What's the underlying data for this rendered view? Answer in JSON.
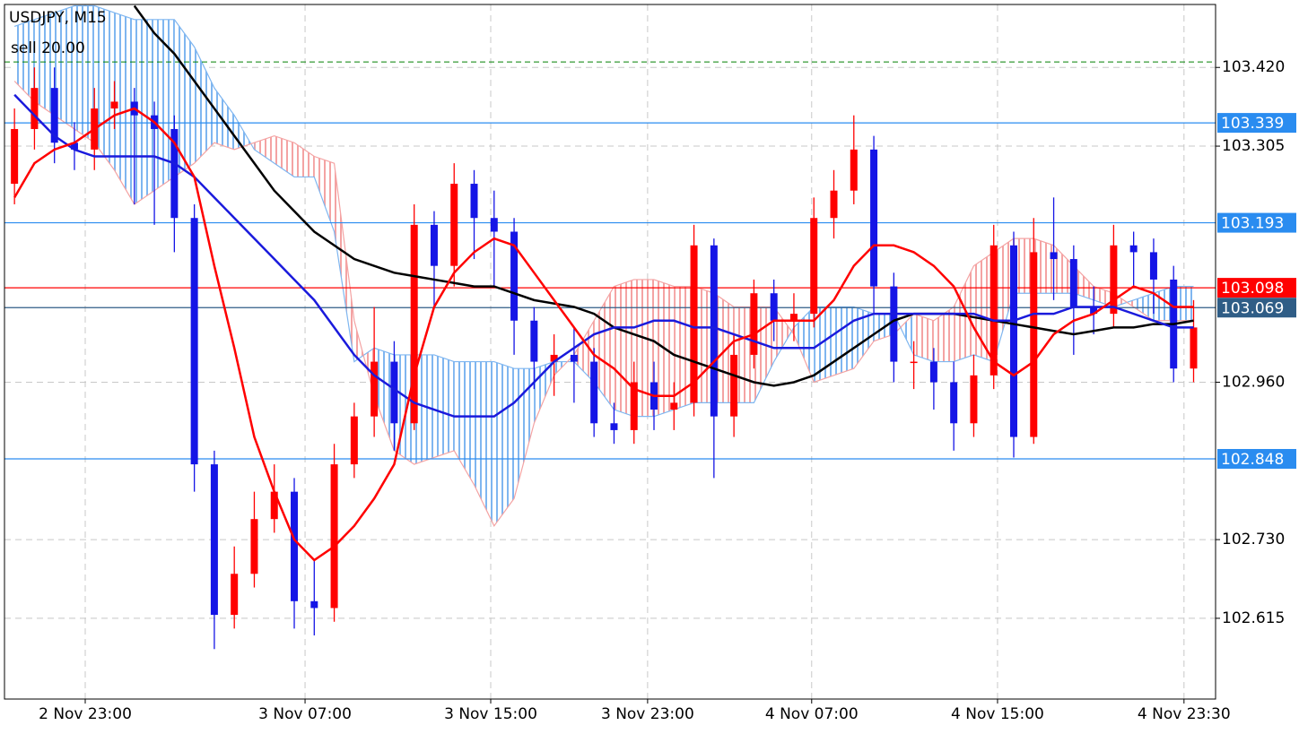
{
  "chart_data": {
    "type": "candlestick",
    "title": "USDJPY, M15",
    "order": {
      "label": "sell 20.00",
      "price": 103.428,
      "color": "#008000"
    },
    "xlim": [
      -0.5,
      60.1
    ],
    "xticks": [
      {
        "value": 3.54,
        "label": "2 Nov 23:00"
      },
      {
        "value": 14.54,
        "label": "3 Nov 07:00"
      },
      {
        "value": 23.83,
        "label": "3 Nov 15:00"
      },
      {
        "value": 31.68,
        "label": "3 Nov 23:00"
      },
      {
        "value": 39.89,
        "label": "4 Nov 07:00"
      },
      {
        "value": 49.19,
        "label": "4 Nov 15:00"
      },
      {
        "value": 58.52,
        "label": "4 Nov 23:30"
      }
    ],
    "ylim": [
      102.497,
      103.512
    ],
    "yticks": [
      {
        "value": 103.42,
        "label": "103.420"
      },
      {
        "value": 103.305,
        "label": "103.305"
      },
      {
        "value": 102.96,
        "label": "102.960"
      },
      {
        "value": 102.73,
        "label": "102.730"
      },
      {
        "value": 102.615,
        "label": "102.615"
      }
    ],
    "grid": true,
    "up_color": "#ff0000",
    "down_color": "#1515e6",
    "open": [
      103.25,
      103.33,
      103.39,
      103.31,
      103.3,
      103.36,
      103.37,
      103.35,
      103.33,
      103.2,
      102.84,
      102.62,
      102.68,
      102.76,
      102.8,
      102.64,
      102.63,
      102.84,
      102.91,
      102.99,
      102.9,
      103.19,
      103.13,
      103.25,
      103.2,
      103.18,
      103.05,
      102.99,
      103.0,
      102.99,
      102.9,
      102.89,
      102.96,
      102.92,
      102.93,
      103.16,
      102.91,
      103.0,
      103.09,
      103.05,
      103.06,
      103.2,
      103.24,
      103.3,
      103.1,
      102.99,
      102.99,
      102.96,
      102.9,
      102.97,
      103.16,
      102.88,
      103.15,
      103.14,
      103.07,
      103.06,
      103.16,
      103.15,
      103.11,
      102.98
    ],
    "high": [
      103.36,
      103.42,
      103.42,
      103.34,
      103.39,
      103.4,
      103.39,
      103.37,
      103.35,
      103.22,
      102.86,
      102.72,
      102.8,
      102.84,
      102.82,
      102.7,
      102.87,
      102.93,
      103.07,
      103.02,
      103.22,
      103.21,
      103.28,
      103.27,
      103.24,
      103.2,
      103.07,
      103.03,
      103.04,
      103.01,
      102.93,
      102.99,
      102.99,
      102.96,
      103.19,
      103.17,
      103.03,
      103.11,
      103.11,
      103.09,
      103.23,
      103.27,
      103.35,
      103.32,
      103.12,
      103.02,
      103.01,
      102.99,
      103.0,
      103.19,
      103.18,
      103.2,
      103.23,
      103.16,
      103.1,
      103.19,
      103.18,
      103.17,
      103.13,
      103.08
    ],
    "low": [
      103.22,
      103.3,
      103.28,
      103.27,
      103.27,
      103.33,
      103.22,
      103.19,
      103.15,
      102.8,
      102.57,
      102.6,
      102.66,
      102.74,
      102.6,
      102.59,
      102.61,
      102.82,
      102.88,
      102.86,
      102.89,
      103.07,
      103.1,
      103.14,
      103.1,
      103.0,
      102.95,
      102.94,
      102.93,
      102.88,
      102.87,
      102.87,
      102.89,
      102.89,
      102.91,
      102.82,
      102.88,
      102.98,
      103.02,
      103.02,
      103.04,
      103.17,
      103.22,
      103.06,
      102.96,
      102.95,
      102.92,
      102.86,
      102.88,
      102.95,
      102.85,
      102.87,
      103.08,
      103.0,
      103.03,
      103.04,
      103.1,
      103.06,
      102.96,
      102.96
    ],
    "close": [
      103.33,
      103.39,
      103.31,
      103.3,
      103.36,
      103.37,
      103.35,
      103.33,
      103.2,
      102.84,
      102.62,
      102.68,
      102.76,
      102.8,
      102.64,
      102.63,
      102.84,
      102.91,
      102.99,
      102.9,
      103.19,
      103.13,
      103.25,
      103.2,
      103.18,
      103.05,
      102.99,
      103.0,
      102.99,
      102.9,
      102.89,
      102.96,
      102.92,
      102.93,
      103.16,
      102.91,
      103.0,
      103.09,
      103.05,
      103.06,
      103.2,
      103.24,
      103.3,
      103.1,
      102.99,
      102.99,
      102.96,
      102.9,
      102.97,
      103.16,
      102.88,
      103.15,
      103.14,
      103.07,
      103.06,
      103.16,
      103.15,
      103.11,
      102.98,
      103.04
    ],
    "cloud": {
      "up_color": "#7fb6f0",
      "down_color": "#f4a3a3",
      "span_a": [
        103.48,
        103.49,
        103.5,
        103.51,
        103.51,
        103.5,
        103.49,
        103.49,
        103.49,
        103.45,
        103.39,
        103.35,
        103.3,
        103.28,
        103.26,
        103.26,
        103.18,
        102.99,
        103.01,
        103.0,
        103.0,
        103.0,
        102.99,
        102.99,
        102.99,
        102.98,
        102.98,
        102.99,
        102.99,
        102.96,
        102.92,
        102.91,
        102.91,
        102.92,
        102.93,
        102.93,
        102.93,
        102.93,
        102.99,
        103.04,
        103.07,
        103.07,
        103.07,
        103.06,
        103.06,
        103.0,
        102.99,
        102.99,
        103.0,
        102.99,
        103.09,
        103.09,
        103.09,
        103.09,
        103.08,
        103.07,
        103.08,
        103.09,
        103.1,
        103.1
      ],
      "span_b": [
        103.4,
        103.37,
        103.35,
        103.33,
        103.31,
        103.27,
        103.22,
        103.24,
        103.26,
        103.28,
        103.31,
        103.3,
        103.31,
        103.32,
        103.31,
        103.29,
        103.28,
        103.05,
        102.94,
        102.86,
        102.84,
        102.85,
        102.86,
        102.81,
        102.75,
        102.79,
        102.9,
        102.97,
        103.0,
        103.05,
        103.1,
        103.11,
        103.11,
        103.1,
        103.1,
        103.09,
        103.07,
        103.07,
        103.07,
        103.03,
        102.96,
        102.97,
        102.98,
        103.02,
        103.03,
        103.06,
        103.05,
        103.07,
        103.13,
        103.15,
        103.17,
        103.17,
        103.16,
        103.13,
        103.1,
        103.09,
        103.07,
        103.05,
        103.05,
        103.05
      ]
    },
    "series": [
      {
        "color": "#000000",
        "values": [
          null,
          null,
          null,
          null,
          null,
          null,
          103.51,
          103.47,
          103.44,
          103.4,
          103.36,
          103.32,
          103.28,
          103.24,
          103.21,
          103.18,
          103.16,
          103.14,
          103.13,
          103.12,
          103.115,
          103.11,
          103.105,
          103.1,
          103.1,
          103.09,
          103.08,
          103.075,
          103.07,
          103.06,
          103.04,
          103.03,
          103.02,
          103.0,
          102.99,
          102.98,
          102.97,
          102.96,
          102.955,
          102.96,
          102.97,
          102.99,
          103.01,
          103.03,
          103.05,
          103.06,
          103.06,
          103.06,
          103.055,
          103.05,
          103.045,
          103.04,
          103.035,
          103.03,
          103.035,
          103.04,
          103.04,
          103.045,
          103.045,
          103.05
        ]
      },
      {
        "color": "#1a1adc",
        "values": [
          103.38,
          103.35,
          103.32,
          103.3,
          103.29,
          103.29,
          103.29,
          103.29,
          103.28,
          103.26,
          103.23,
          103.2,
          103.17,
          103.14,
          103.11,
          103.08,
          103.04,
          103.0,
          102.97,
          102.95,
          102.93,
          102.92,
          102.91,
          102.91,
          102.91,
          102.93,
          102.96,
          102.99,
          103.01,
          103.03,
          103.04,
          103.04,
          103.05,
          103.05,
          103.04,
          103.04,
          103.03,
          103.02,
          103.01,
          103.01,
          103.01,
          103.03,
          103.05,
          103.06,
          103.06,
          103.06,
          103.06,
          103.06,
          103.06,
          103.05,
          103.05,
          103.06,
          103.06,
          103.07,
          103.07,
          103.07,
          103.06,
          103.05,
          103.04,
          103.04
        ]
      },
      {
        "color": "#ff0000",
        "values": [
          103.23,
          103.28,
          103.3,
          103.31,
          103.33,
          103.35,
          103.36,
          103.34,
          103.31,
          103.26,
          103.13,
          103.01,
          102.88,
          102.8,
          102.73,
          102.7,
          102.72,
          102.75,
          102.79,
          102.84,
          102.97,
          103.07,
          103.12,
          103.15,
          103.17,
          103.16,
          103.12,
          103.08,
          103.04,
          103.0,
          102.98,
          102.95,
          102.94,
          102.94,
          102.96,
          102.99,
          103.02,
          103.03,
          103.05,
          103.05,
          103.05,
          103.08,
          103.13,
          103.16,
          103.16,
          103.15,
          103.13,
          103.1,
          103.04,
          102.99,
          102.97,
          102.99,
          103.03,
          103.05,
          103.06,
          103.08,
          103.1,
          103.09,
          103.07,
          103.07
        ]
      }
    ],
    "levels": [
      {
        "value": 103.339,
        "color": "#2a8cf0",
        "text_color": "#ffffff"
      },
      {
        "value": 103.193,
        "color": "#2a8cf0",
        "text_color": "#ffffff"
      },
      {
        "value": 102.848,
        "color": "#2a8cf0",
        "text_color": "#ffffff"
      },
      {
        "value": 103.098,
        "color": "#ff0000",
        "text_color": "#ffffff"
      },
      {
        "value": 103.069,
        "color": "#2f5d86",
        "text_color": "#ffffff"
      }
    ]
  }
}
